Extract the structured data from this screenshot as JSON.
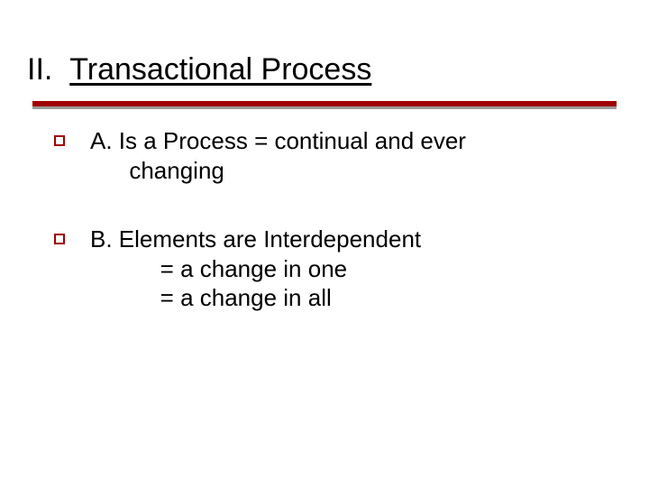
{
  "colors": {
    "text": "#000000",
    "background": "#ffffff",
    "rule_red": "#a00000",
    "rule_gray": "#9a9a9a",
    "bullet_border": "#a00000"
  },
  "typography": {
    "font_family": "Verdana",
    "title_fontsize_pt": 26,
    "body_fontsize_pt": 20
  },
  "title": {
    "number": "II.  ",
    "text": "Transactional Process"
  },
  "items": [
    {
      "lines": [
        "A.  Is a Process = continual and ever",
        "      changing"
      ]
    },
    {
      "lines": [
        "B.  Elements are Interdependent",
        "   = a change in one",
        "   = a change in all"
      ]
    }
  ]
}
